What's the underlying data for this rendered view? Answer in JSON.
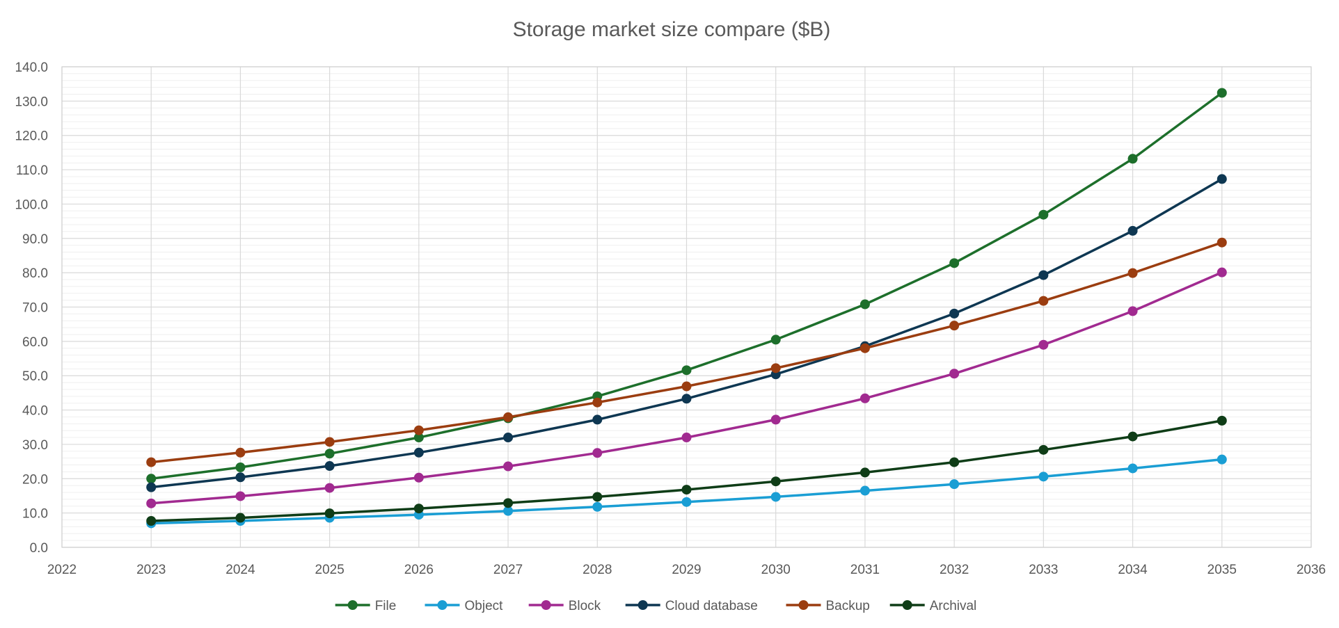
{
  "chart_data": {
    "type": "line",
    "title": "Storage market size compare ($B)",
    "xlabel": "",
    "ylabel": "",
    "xlim": [
      2022,
      2036
    ],
    "ylim": [
      0,
      140
    ],
    "x_ticks": [
      2022,
      2023,
      2024,
      2025,
      2026,
      2027,
      2028,
      2029,
      2030,
      2031,
      2032,
      2033,
      2034,
      2035,
      2036
    ],
    "y_ticks": [
      0,
      10,
      20,
      30,
      40,
      50,
      60,
      70,
      80,
      90,
      100,
      110,
      120,
      130,
      140
    ],
    "y_tick_labels": [
      "0.0",
      "10.0",
      "20.0",
      "30.0",
      "40.0",
      "50.0",
      "60.0",
      "70.0",
      "80.0",
      "90.0",
      "100.0",
      "110.0",
      "120.0",
      "130.0",
      "140.0"
    ],
    "grid": true,
    "legend_position": "bottom",
    "x": [
      2023,
      2024,
      2025,
      2026,
      2027,
      2028,
      2029,
      2030,
      2031,
      2032,
      2033,
      2034,
      2035
    ],
    "series": [
      {
        "name": "File",
        "color": "#1d6f2b",
        "values": [
          20.0,
          23.3,
          27.3,
          32.0,
          37.6,
          44.0,
          51.6,
          60.5,
          70.8,
          82.8,
          96.9,
          113.2,
          132.4
        ]
      },
      {
        "name": "Object",
        "color": "#1a9ed4",
        "values": [
          7.0,
          7.7,
          8.6,
          9.5,
          10.6,
          11.8,
          13.2,
          14.7,
          16.5,
          18.4,
          20.6,
          23.0,
          25.6
        ]
      },
      {
        "name": "Block",
        "color": "#a12a90",
        "values": [
          12.8,
          14.9,
          17.3,
          20.3,
          23.6,
          27.5,
          32.0,
          37.2,
          43.4,
          50.6,
          59.0,
          68.8,
          80.1
        ]
      },
      {
        "name": "Cloud database",
        "color": "#0e3752",
        "values": [
          17.5,
          20.4,
          23.7,
          27.6,
          32.0,
          37.2,
          43.3,
          50.4,
          58.6,
          68.1,
          79.3,
          92.2,
          107.3
        ]
      },
      {
        "name": "Backup",
        "color": "#9b3d10",
        "values": [
          24.8,
          27.6,
          30.7,
          34.1,
          37.9,
          42.2,
          46.9,
          52.2,
          58.0,
          64.6,
          71.8,
          79.9,
          88.8
        ]
      },
      {
        "name": "Archival",
        "color": "#0f3d17",
        "values": [
          7.7,
          8.6,
          9.9,
          11.3,
          12.9,
          14.7,
          16.8,
          19.2,
          21.8,
          24.8,
          28.4,
          32.3,
          36.9
        ]
      }
    ]
  }
}
